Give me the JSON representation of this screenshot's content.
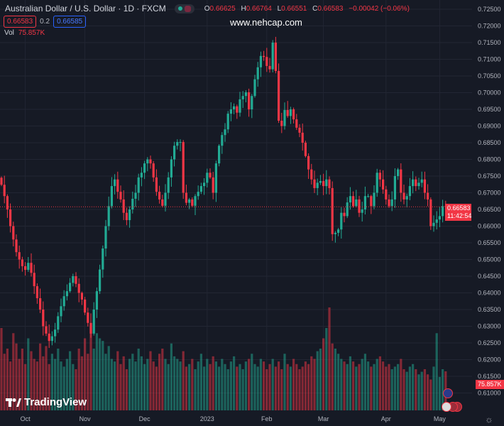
{
  "header": {
    "symbol": "Australian Dollar / U.S. Dollar · 1D · FXCM",
    "ohlc": {
      "o_label": "O",
      "o": "0.66625",
      "h_label": "H",
      "h": "0.66764",
      "l_label": "L",
      "l": "0.66551",
      "c_label": "C",
      "c": "0.66583",
      "change": "−0.00042 (−0.06%)"
    },
    "sell_price": "0.66583",
    "spread": "0.2",
    "buy_price": "0.66585",
    "vol_label": "Vol",
    "vol_value": "75.857K"
  },
  "watermark": "www.nehcap.com",
  "logo": "TradingView",
  "last_price_label": {
    "price": "0.66583",
    "countdown": "11:42:54"
  },
  "last_volume_label": "75.857K",
  "colors": {
    "up": "#22ab94",
    "down": "#f23645",
    "background": "#161a25",
    "grid": "#222633"
  },
  "chart_data": {
    "type": "candlestick",
    "title": "Australian Dollar / U.S. Dollar · 1D · FXCM",
    "x_tick_labels": [
      {
        "label": "Oct",
        "index": 8
      },
      {
        "label": "Nov",
        "index": 28
      },
      {
        "label": "Dec",
        "index": 48
      },
      {
        "label": "2023",
        "index": 69
      },
      {
        "label": "Feb",
        "index": 89
      },
      {
        "label": "Mar",
        "index": 108
      },
      {
        "label": "Apr",
        "index": 129
      },
      {
        "label": "May",
        "index": 147
      }
    ],
    "y_ticks": [
      "0.72500",
      "0.72000",
      "0.71500",
      "0.71000",
      "0.70500",
      "0.70000",
      "0.69500",
      "0.69000",
      "0.68500",
      "0.68000",
      "0.67500",
      "0.67000",
      "0.66500",
      "0.66000",
      "0.65500",
      "0.65000",
      "0.64500",
      "0.64000",
      "0.63500",
      "0.63000",
      "0.62500",
      "0.62000",
      "0.61500",
      "0.61000"
    ],
    "ylim": [
      0.6075,
      0.7265
    ],
    "first_open": 0.6745,
    "closes": [
      0.6724,
      0.669,
      0.665,
      0.66,
      0.656,
      0.6522,
      0.65,
      0.648,
      0.6469,
      0.649,
      0.646,
      0.642,
      0.6384,
      0.635,
      0.63,
      0.6278,
      0.6256,
      0.627,
      0.629,
      0.633,
      0.636,
      0.639,
      0.6405,
      0.643,
      0.645,
      0.6427,
      0.64,
      0.638,
      0.6341,
      0.631,
      0.6278,
      0.635,
      0.6405,
      0.647,
      0.6533,
      0.66,
      0.666,
      0.672,
      0.674,
      0.6703,
      0.668,
      0.664,
      0.6618,
      0.665,
      0.6682,
      0.67,
      0.6746,
      0.676,
      0.6788,
      0.68,
      0.6788,
      0.6746,
      0.6703,
      0.668,
      0.6661,
      0.67,
      0.6746,
      0.68,
      0.6841,
      0.6852,
      0.6852,
      0.67,
      0.667,
      0.668,
      0.6661,
      0.669,
      0.6703,
      0.672,
      0.673,
      0.676,
      0.6746,
      0.67,
      0.6788,
      0.6841,
      0.6873,
      0.689,
      0.6937,
      0.695,
      0.6959,
      0.694,
      0.698,
      0.699,
      0.7001,
      0.695,
      0.699,
      0.704,
      0.7076,
      0.711,
      0.7107,
      0.708,
      0.707,
      0.715,
      0.7065,
      0.6916,
      0.69,
      0.6948,
      0.693,
      0.695,
      0.692,
      0.6895,
      0.688,
      0.685,
      0.681,
      0.677,
      0.674,
      0.6714,
      0.673,
      0.6735,
      0.672,
      0.674,
      0.6714,
      0.6576,
      0.658,
      0.659,
      0.664,
      0.663,
      0.6671,
      0.669,
      0.666,
      0.668,
      0.664,
      0.665,
      0.669,
      0.669,
      0.666,
      0.67,
      0.676,
      0.674,
      0.671,
      0.668,
      0.666,
      0.668,
      0.675,
      0.677,
      0.67,
      0.668,
      0.669,
      0.672,
      0.674,
      0.672,
      0.673,
      0.674,
      0.67,
      0.668,
      0.66,
      0.661,
      0.662,
      0.663,
      0.666,
      0.6658
    ],
    "volumes_k": [
      160,
      110,
      120,
      95,
      150,
      130,
      100,
      120,
      90,
      140,
      115,
      100,
      95,
      130,
      105,
      125,
      90,
      110,
      100,
      120,
      95,
      85,
      100,
      115,
      90,
      80,
      120,
      105,
      140,
      110,
      165,
      120,
      150,
      140,
      135,
      110,
      125,
      100,
      95,
      115,
      90,
      105,
      80,
      100,
      110,
      95,
      120,
      105,
      90,
      100,
      115,
      95,
      85,
      110,
      120,
      100,
      90,
      130,
      105,
      100,
      95,
      115,
      85,
      90,
      100,
      80,
      95,
      110,
      85,
      100,
      90,
      105,
      95,
      85,
      100,
      90,
      80,
      95,
      105,
      85,
      90,
      80,
      95,
      100,
      110,
      90,
      85,
      100,
      95,
      80,
      90,
      100,
      85,
      95,
      80,
      110,
      90,
      85,
      100,
      90,
      80,
      85,
      95,
      90,
      105,
      100,
      115,
      120,
      140,
      160,
      200,
      130,
      120,
      110,
      100,
      95,
      90,
      105,
      95,
      85,
      90,
      100,
      110,
      95,
      85,
      90,
      100,
      105,
      95,
      85,
      90,
      80,
      85,
      90,
      100,
      80,
      75,
      85,
      90,
      80,
      70,
      75,
      80,
      70,
      60,
      85,
      150,
      65,
      80,
      75.857
    ]
  }
}
